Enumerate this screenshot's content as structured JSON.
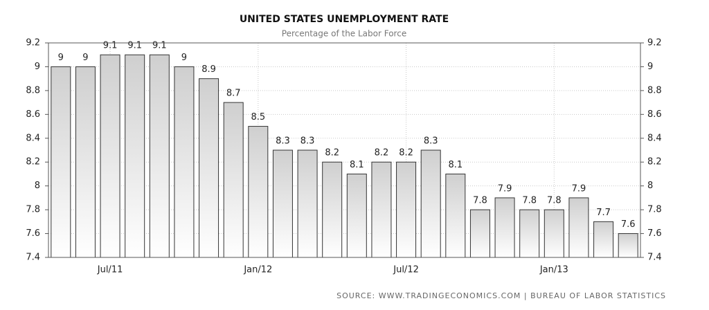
{
  "chart_data": {
    "type": "bar",
    "title": "UNITED STATES UNEMPLOYMENT RATE",
    "subtitle": "Percentage of the Labor Force",
    "source": "SOURCE:  WWW.TRADINGECONOMICS.COM  |  BUREAU OF LABOR STATISTICS",
    "categories": [
      null,
      null,
      "Jul/11",
      null,
      null,
      null,
      null,
      null,
      "Jan/12",
      null,
      null,
      null,
      null,
      null,
      "Jul/12",
      null,
      null,
      null,
      null,
      null,
      "Jan/13",
      null,
      null,
      null
    ],
    "values": [
      9,
      9,
      9.1,
      9.1,
      9.1,
      9,
      8.9,
      8.7,
      8.5,
      8.3,
      8.3,
      8.2,
      8.1,
      8.2,
      8.2,
      8.3,
      8.1,
      7.8,
      7.9,
      7.8,
      7.8,
      7.9,
      7.7,
      7.6
    ],
    "color": "#d0d0d0",
    "ylim": [
      7.4,
      9.2
    ],
    "yticks": [
      7.4,
      7.6,
      7.8,
      8,
      8.2,
      8.4,
      8.6,
      8.8,
      9,
      9.2
    ],
    "y2lim": [
      7.4,
      9.2
    ],
    "y2ticks": [
      7.4,
      7.6,
      7.8,
      8,
      8.2,
      8.4,
      8.6,
      8.8,
      9,
      9.2
    ],
    "grid": true
  }
}
